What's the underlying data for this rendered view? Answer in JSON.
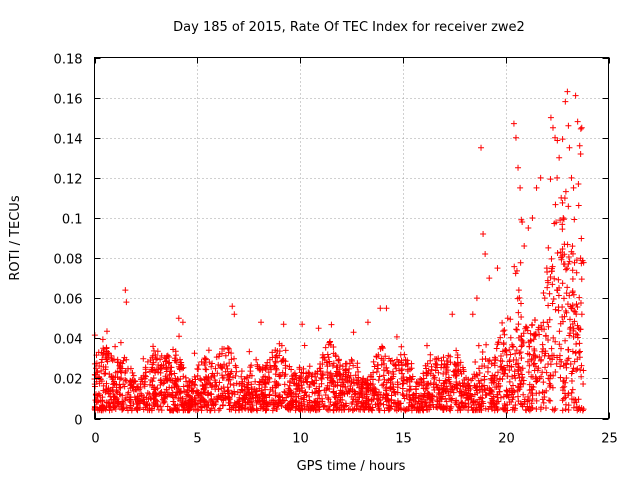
{
  "colors": {
    "points": "#ff0000",
    "axes": "#000000",
    "grid": "#a0a0a0",
    "background": "#ffffff"
  },
  "chart_data": {
    "type": "scatter",
    "marker": "plus",
    "title": "Day 185 of 2015, Rate Of TEC Index for receiver zwe2",
    "xlabel": "GPS time / hours",
    "ylabel": "ROTI / TECUs",
    "xlim": [
      0,
      25
    ],
    "ylim": [
      0,
      0.18
    ],
    "xticks": [
      0,
      5,
      10,
      15,
      20,
      25
    ],
    "xtick_labels": [
      "0",
      "5",
      "10",
      "15",
      "20",
      "25"
    ],
    "yticks": [
      0,
      0.02,
      0.04,
      0.06,
      0.08,
      0.1,
      0.12,
      0.14,
      0.16,
      0.18
    ],
    "ytick_labels": [
      "0",
      "0.02",
      "0.04",
      "0.06",
      "0.08",
      "0.1",
      "0.12",
      "0.14",
      "0.16",
      "0.18"
    ],
    "grid": true,
    "legend": "none",
    "series": [
      {
        "name": "ROTI",
        "description": "dense cloud of ROTI samples from 0 to ~23.8 h; background mostly 0.002-0.035 TECU with higher spikes near 1.5 h, 4 h, 6.7 h, 13-14 h and strongly enhanced values after ~18.5 h",
        "x": [
          1.5,
          1.55,
          4.1,
          4.3,
          6.7,
          6.8,
          8.1,
          9.2,
          10.1,
          10.9,
          12.6,
          13.3,
          13.9,
          14.2,
          17.4,
          18.4,
          18.6,
          18.8,
          18.9,
          19.0,
          19.2,
          19.6,
          20.1,
          20.4,
          20.5,
          20.6,
          20.7,
          20.8,
          20.9,
          21.1,
          21.3,
          21.5,
          21.7,
          21.9,
          22.0,
          22.2,
          22.3,
          22.4,
          22.5,
          22.6,
          22.7,
          22.8,
          22.9,
          23.0,
          23.05,
          23.1,
          23.2,
          23.3,
          23.4,
          23.5,
          23.6,
          23.7
        ],
        "y": [
          0.064,
          0.058,
          0.05,
          0.048,
          0.056,
          0.052,
          0.048,
          0.047,
          0.047,
          0.045,
          0.043,
          0.048,
          0.055,
          0.055,
          0.052,
          0.052,
          0.06,
          0.135,
          0.092,
          0.082,
          0.07,
          0.075,
          0.05,
          0.147,
          0.14,
          0.125,
          0.115,
          0.098,
          0.086,
          0.095,
          0.1,
          0.115,
          0.12,
          0.06,
          0.075,
          0.15,
          0.145,
          0.14,
          0.12,
          0.13,
          0.11,
          0.1,
          0.158,
          0.163,
          0.146,
          0.135,
          0.12,
          0.115,
          0.161,
          0.148,
          0.136,
          0.145
        ]
      }
    ]
  }
}
